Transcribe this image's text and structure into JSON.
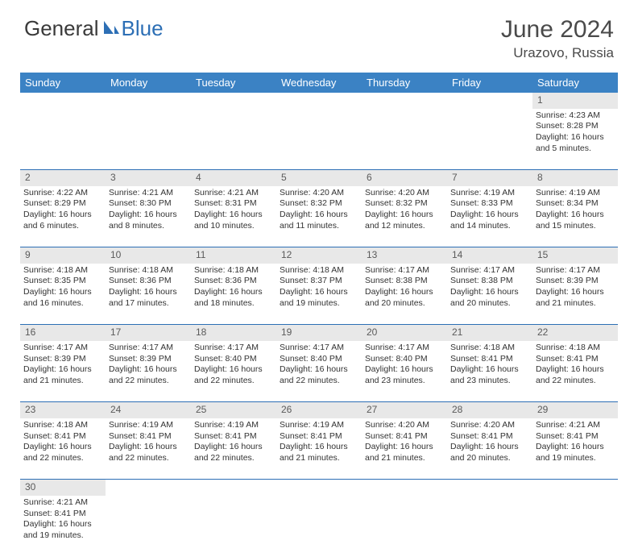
{
  "logo": {
    "text1": "General",
    "text2": "Blue"
  },
  "title": "June 2024",
  "location": "Urazovo, Russia",
  "colors": {
    "header_bg": "#3b82c4",
    "header_fg": "#ffffff",
    "daynum_bg": "#e8e8e8",
    "rule": "#2d6fb5",
    "logo_gray": "#3a3a3a",
    "logo_blue": "#2d6fb5"
  },
  "weekdays": [
    "Sunday",
    "Monday",
    "Tuesday",
    "Wednesday",
    "Thursday",
    "Friday",
    "Saturday"
  ],
  "weeks": [
    {
      "nums": [
        "",
        "",
        "",
        "",
        "",
        "",
        "1"
      ],
      "cells": [
        null,
        null,
        null,
        null,
        null,
        null,
        {
          "sr": "Sunrise: 4:23 AM",
          "ss": "Sunset: 8:28 PM",
          "d1": "Daylight: 16 hours",
          "d2": "and 5 minutes."
        }
      ]
    },
    {
      "nums": [
        "2",
        "3",
        "4",
        "5",
        "6",
        "7",
        "8"
      ],
      "cells": [
        {
          "sr": "Sunrise: 4:22 AM",
          "ss": "Sunset: 8:29 PM",
          "d1": "Daylight: 16 hours",
          "d2": "and 6 minutes."
        },
        {
          "sr": "Sunrise: 4:21 AM",
          "ss": "Sunset: 8:30 PM",
          "d1": "Daylight: 16 hours",
          "d2": "and 8 minutes."
        },
        {
          "sr": "Sunrise: 4:21 AM",
          "ss": "Sunset: 8:31 PM",
          "d1": "Daylight: 16 hours",
          "d2": "and 10 minutes."
        },
        {
          "sr": "Sunrise: 4:20 AM",
          "ss": "Sunset: 8:32 PM",
          "d1": "Daylight: 16 hours",
          "d2": "and 11 minutes."
        },
        {
          "sr": "Sunrise: 4:20 AM",
          "ss": "Sunset: 8:32 PM",
          "d1": "Daylight: 16 hours",
          "d2": "and 12 minutes."
        },
        {
          "sr": "Sunrise: 4:19 AM",
          "ss": "Sunset: 8:33 PM",
          "d1": "Daylight: 16 hours",
          "d2": "and 14 minutes."
        },
        {
          "sr": "Sunrise: 4:19 AM",
          "ss": "Sunset: 8:34 PM",
          "d1": "Daylight: 16 hours",
          "d2": "and 15 minutes."
        }
      ]
    },
    {
      "nums": [
        "9",
        "10",
        "11",
        "12",
        "13",
        "14",
        "15"
      ],
      "cells": [
        {
          "sr": "Sunrise: 4:18 AM",
          "ss": "Sunset: 8:35 PM",
          "d1": "Daylight: 16 hours",
          "d2": "and 16 minutes."
        },
        {
          "sr": "Sunrise: 4:18 AM",
          "ss": "Sunset: 8:36 PM",
          "d1": "Daylight: 16 hours",
          "d2": "and 17 minutes."
        },
        {
          "sr": "Sunrise: 4:18 AM",
          "ss": "Sunset: 8:36 PM",
          "d1": "Daylight: 16 hours",
          "d2": "and 18 minutes."
        },
        {
          "sr": "Sunrise: 4:18 AM",
          "ss": "Sunset: 8:37 PM",
          "d1": "Daylight: 16 hours",
          "d2": "and 19 minutes."
        },
        {
          "sr": "Sunrise: 4:17 AM",
          "ss": "Sunset: 8:38 PM",
          "d1": "Daylight: 16 hours",
          "d2": "and 20 minutes."
        },
        {
          "sr": "Sunrise: 4:17 AM",
          "ss": "Sunset: 8:38 PM",
          "d1": "Daylight: 16 hours",
          "d2": "and 20 minutes."
        },
        {
          "sr": "Sunrise: 4:17 AM",
          "ss": "Sunset: 8:39 PM",
          "d1": "Daylight: 16 hours",
          "d2": "and 21 minutes."
        }
      ]
    },
    {
      "nums": [
        "16",
        "17",
        "18",
        "19",
        "20",
        "21",
        "22"
      ],
      "cells": [
        {
          "sr": "Sunrise: 4:17 AM",
          "ss": "Sunset: 8:39 PM",
          "d1": "Daylight: 16 hours",
          "d2": "and 21 minutes."
        },
        {
          "sr": "Sunrise: 4:17 AM",
          "ss": "Sunset: 8:39 PM",
          "d1": "Daylight: 16 hours",
          "d2": "and 22 minutes."
        },
        {
          "sr": "Sunrise: 4:17 AM",
          "ss": "Sunset: 8:40 PM",
          "d1": "Daylight: 16 hours",
          "d2": "and 22 minutes."
        },
        {
          "sr": "Sunrise: 4:17 AM",
          "ss": "Sunset: 8:40 PM",
          "d1": "Daylight: 16 hours",
          "d2": "and 22 minutes."
        },
        {
          "sr": "Sunrise: 4:17 AM",
          "ss": "Sunset: 8:40 PM",
          "d1": "Daylight: 16 hours",
          "d2": "and 23 minutes."
        },
        {
          "sr": "Sunrise: 4:18 AM",
          "ss": "Sunset: 8:41 PM",
          "d1": "Daylight: 16 hours",
          "d2": "and 23 minutes."
        },
        {
          "sr": "Sunrise: 4:18 AM",
          "ss": "Sunset: 8:41 PM",
          "d1": "Daylight: 16 hours",
          "d2": "and 22 minutes."
        }
      ]
    },
    {
      "nums": [
        "23",
        "24",
        "25",
        "26",
        "27",
        "28",
        "29"
      ],
      "cells": [
        {
          "sr": "Sunrise: 4:18 AM",
          "ss": "Sunset: 8:41 PM",
          "d1": "Daylight: 16 hours",
          "d2": "and 22 minutes."
        },
        {
          "sr": "Sunrise: 4:19 AM",
          "ss": "Sunset: 8:41 PM",
          "d1": "Daylight: 16 hours",
          "d2": "and 22 minutes."
        },
        {
          "sr": "Sunrise: 4:19 AM",
          "ss": "Sunset: 8:41 PM",
          "d1": "Daylight: 16 hours",
          "d2": "and 22 minutes."
        },
        {
          "sr": "Sunrise: 4:19 AM",
          "ss": "Sunset: 8:41 PM",
          "d1": "Daylight: 16 hours",
          "d2": "and 21 minutes."
        },
        {
          "sr": "Sunrise: 4:20 AM",
          "ss": "Sunset: 8:41 PM",
          "d1": "Daylight: 16 hours",
          "d2": "and 21 minutes."
        },
        {
          "sr": "Sunrise: 4:20 AM",
          "ss": "Sunset: 8:41 PM",
          "d1": "Daylight: 16 hours",
          "d2": "and 20 minutes."
        },
        {
          "sr": "Sunrise: 4:21 AM",
          "ss": "Sunset: 8:41 PM",
          "d1": "Daylight: 16 hours",
          "d2": "and 19 minutes."
        }
      ]
    },
    {
      "nums": [
        "30",
        "",
        "",
        "",
        "",
        "",
        ""
      ],
      "cells": [
        {
          "sr": "Sunrise: 4:21 AM",
          "ss": "Sunset: 8:41 PM",
          "d1": "Daylight: 16 hours",
          "d2": "and 19 minutes."
        },
        null,
        null,
        null,
        null,
        null,
        null
      ],
      "last": true
    }
  ]
}
